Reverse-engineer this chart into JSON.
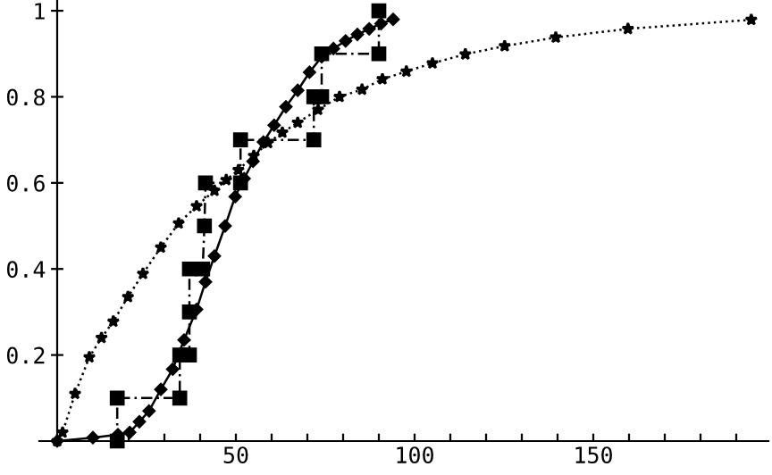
{
  "chart_data": {
    "type": "line",
    "xlim": [
      -5,
      199
    ],
    "ylim": [
      0,
      1.025
    ],
    "xticks": [
      {
        "value": 10,
        "label": null
      },
      {
        "value": 20,
        "label": null
      },
      {
        "value": 30,
        "label": null
      },
      {
        "value": 40,
        "label": null
      },
      50,
      {
        "value": 60,
        "label": null
      },
      {
        "value": 70,
        "label": null
      },
      {
        "value": 80,
        "label": null
      },
      {
        "value": 90,
        "label": null
      },
      100,
      {
        "value": 110,
        "label": null
      },
      {
        "value": 120,
        "label": null
      },
      {
        "value": 130,
        "label": null
      },
      {
        "value": 140,
        "label": null
      },
      150,
      {
        "value": 160,
        "label": null
      },
      {
        "value": 170,
        "label": null
      },
      {
        "value": 180,
        "label": null
      },
      {
        "value": 190,
        "label": null
      }
    ],
    "yticks": [
      0.2,
      0.4,
      0.6,
      0.8,
      1
    ],
    "grid": false,
    "legend": false,
    "series": [
      {
        "color": "#000000",
        "marker": "square",
        "line_style": "dashed",
        "x": [
          16.8,
          16.8,
          34.3,
          34.3,
          37,
          37,
          37,
          40.7,
          41.2,
          41.5,
          51.3,
          51.3,
          71.8,
          71.8,
          74,
          74,
          90,
          90
        ],
        "values": [
          0,
          0.1,
          0.1,
          0.2,
          0.2,
          0.3,
          0.4,
          0.4,
          0.5,
          0.6,
          0.6,
          0.7,
          0.7,
          0.8,
          0.8,
          0.9,
          0.9,
          1.0
        ]
      },
      {
        "color": "#000000",
        "marker": "diamond",
        "line_style": "solid",
        "x": [
          0,
          10,
          17,
          20.3,
          23,
          25.7,
          29,
          32.3,
          35.5,
          39,
          41.5,
          44,
          47,
          49.8,
          52.3,
          54.8,
          57.7,
          60.7,
          64,
          67.3,
          70.6,
          74,
          77.3,
          80.7,
          84,
          87.3,
          90.6,
          94
        ],
        "values": [
          0,
          0.008,
          0.015,
          0.02,
          0.045,
          0.07,
          0.12,
          0.167,
          0.235,
          0.306,
          0.37,
          0.43,
          0.5,
          0.568,
          0.61,
          0.65,
          0.695,
          0.734,
          0.777,
          0.815,
          0.857,
          0.893,
          0.912,
          0.93,
          0.945,
          0.958,
          0.97,
          0.98
        ]
      },
      {
        "color": "#000000",
        "marker": "star",
        "line_style": "dotted",
        "x": [
          0,
          1.5,
          5,
          9,
          12.4,
          15.7,
          19.8,
          24,
          29,
          34,
          39,
          44,
          47.3,
          50.7,
          55,
          59,
          63,
          67.3,
          73,
          79,
          85.3,
          91,
          97.7,
          105,
          114.2,
          125.2,
          139.5,
          159.7,
          194.2
        ],
        "values": [
          0,
          0.02,
          0.11,
          0.195,
          0.24,
          0.278,
          0.335,
          0.389,
          0.45,
          0.506,
          0.546,
          0.582,
          0.607,
          0.63,
          0.663,
          0.693,
          0.717,
          0.74,
          0.77,
          0.8,
          0.817,
          0.841,
          0.859,
          0.878,
          0.899,
          0.918,
          0.938,
          0.958,
          0.979
        ]
      }
    ]
  }
}
